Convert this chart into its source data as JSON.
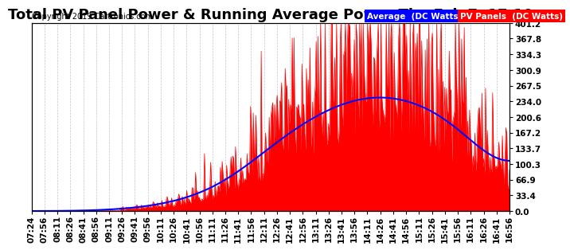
{
  "title": "Total PV Panel Power & Running Average Power Thu Feb 7  17:10",
  "copyright": "Copyright 2019 Cartronics.com",
  "legend_avg": "Average  (DC Watts)",
  "legend_pv": "PV Panels  (DC Watts)",
  "ylabel_right_ticks": [
    0.0,
    33.4,
    66.9,
    100.3,
    133.7,
    167.2,
    200.6,
    234.0,
    267.5,
    300.9,
    334.3,
    367.8,
    401.2
  ],
  "ylim": [
    0,
    401.2
  ],
  "xtick_labels": [
    "07:24",
    "07:56",
    "08:11",
    "08:26",
    "08:41",
    "08:56",
    "09:11",
    "09:26",
    "09:41",
    "09:56",
    "10:11",
    "10:26",
    "10:41",
    "10:56",
    "11:11",
    "11:26",
    "11:41",
    "11:56",
    "12:11",
    "12:26",
    "12:41",
    "12:56",
    "13:11",
    "13:26",
    "13:41",
    "13:56",
    "14:11",
    "14:26",
    "14:41",
    "14:56",
    "15:11",
    "15:26",
    "15:41",
    "15:56",
    "16:11",
    "16:26",
    "16:41",
    "16:56"
  ],
  "background_color": "#ffffff",
  "plot_bg_color": "#ffffff",
  "grid_color": "#aaaaaa",
  "pv_color": "#ff0000",
  "avg_color": "#0000ff",
  "title_fontsize": 13,
  "tick_fontsize": 7.5
}
